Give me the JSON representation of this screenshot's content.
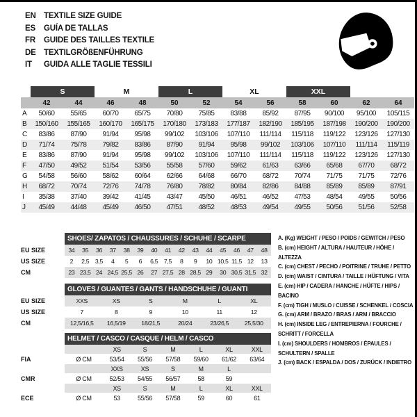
{
  "header": {
    "rows": [
      {
        "lang": "EN",
        "text": "TEXTILE SIZE GUIDE"
      },
      {
        "lang": "ES",
        "text": "GUÍA DE TALLAS"
      },
      {
        "lang": "FR",
        "text": "GUIDE DES TAILLES TEXTILE"
      },
      {
        "lang": "DE",
        "text": "TEXTILGRÖßENFÜHRUNG"
      },
      {
        "lang": "IT",
        "text": "GUIDA ALLE TAGLIE TESSILI"
      }
    ],
    "logo": "racing-helmet-icon"
  },
  "colors": {
    "dark_bar": "#3d3d3d",
    "sizes_row": "#bfbfbf",
    "stripe": "#ececec",
    "band": "#e0e0e0"
  },
  "main_table": {
    "size_groups": [
      {
        "label": "S",
        "dark": true
      },
      {
        "label": "M",
        "dark": false
      },
      {
        "label": "L",
        "dark": true
      },
      {
        "label": "XL",
        "dark": false
      },
      {
        "label": "XXL",
        "dark": true
      }
    ],
    "numeric_sizes": [
      "42",
      "44",
      "46",
      "48",
      "50",
      "52",
      "54",
      "56",
      "58",
      "60",
      "62",
      "64"
    ],
    "rows": [
      {
        "label": "A",
        "values": [
          "50/60",
          "55/65",
          "60/70",
          "65/75",
          "70/80",
          "75/85",
          "83/88",
          "85/92",
          "87/95",
          "90/100",
          "95/100",
          "105/115"
        ]
      },
      {
        "label": "B",
        "values": [
          "150/160",
          "155/165",
          "160/170",
          "165/175",
          "170/180",
          "173/183",
          "177/187",
          "182/190",
          "185/195",
          "187/198",
          "190/200",
          "190/200"
        ]
      },
      {
        "label": "C",
        "values": [
          "83/86",
          "87/90",
          "91/94",
          "95/98",
          "99/102",
          "103/106",
          "107/110",
          "111/114",
          "115/118",
          "119/122",
          "123/126",
          "127/130"
        ]
      },
      {
        "label": "D",
        "values": [
          "71/74",
          "75/78",
          "79/82",
          "83/86",
          "87/90",
          "91/94",
          "95/98",
          "99/102",
          "103/106",
          "107/110",
          "111/114",
          "115/119"
        ]
      },
      {
        "label": "E",
        "values": [
          "83/86",
          "87/90",
          "91/94",
          "95/98",
          "99/102",
          "103/106",
          "107/110",
          "111/114",
          "115/118",
          "119/122",
          "123/126",
          "127/130"
        ]
      },
      {
        "label": "F",
        "values": [
          "47/50",
          "49/52",
          "51/54",
          "53/56",
          "55/58",
          "57/60",
          "59/62",
          "61/63",
          "63/66",
          "65/68",
          "67/70",
          "68/72"
        ]
      },
      {
        "label": "G",
        "values": [
          "54/58",
          "56/60",
          "58/62",
          "60/64",
          "62/66",
          "64/68",
          "66/70",
          "68/72",
          "70/74",
          "71/75",
          "71/75",
          "72/76"
        ]
      },
      {
        "label": "H",
        "values": [
          "68/72",
          "70/74",
          "72/76",
          "74/78",
          "76/80",
          "78/82",
          "80/84",
          "82/86",
          "84/88",
          "85/89",
          "85/89",
          "87/91"
        ]
      },
      {
        "label": "I",
        "values": [
          "35/38",
          "37/40",
          "39/42",
          "41/45",
          "43/47",
          "45/50",
          "46/51",
          "46/52",
          "47/53",
          "48/54",
          "49/55",
          "50/56"
        ]
      },
      {
        "label": "J",
        "values": [
          "45/49",
          "44/48",
          "45/49",
          "46/50",
          "47/51",
          "48/52",
          "48/53",
          "49/54",
          "49/55",
          "50/56",
          "51/56",
          "52/58"
        ]
      }
    ]
  },
  "shoes_table": {
    "title": "SHOES/ ZAPATOS / CHAUSSURES / SCHUHE / SCARPE",
    "rows": [
      {
        "label": "EU SIZE",
        "shaded": true,
        "values": [
          "34",
          "35",
          "36",
          "37",
          "38",
          "39",
          "40",
          "41",
          "42",
          "43",
          "44",
          "45",
          "46",
          "47",
          "48"
        ]
      },
      {
        "label": "US SIZE",
        "shaded": false,
        "values": [
          "2",
          "2,5",
          "3,5",
          "4",
          "5",
          "6",
          "6,5",
          "7,5",
          "8",
          "9",
          "10",
          "10,5",
          "11,5",
          "12",
          "13"
        ]
      },
      {
        "label": "CM",
        "shaded": true,
        "values": [
          "23",
          "23,5",
          "24",
          "24,5",
          "25,5",
          "26",
          "27",
          "27,5",
          "28",
          "28,5",
          "29",
          "30",
          "30,5",
          "31,5",
          "32"
        ]
      }
    ]
  },
  "gloves_table": {
    "title": "GLOVES / GUANTES / GANTS / HANDSCHUHE / GUANTI",
    "rows": [
      {
        "label": "EU SIZE",
        "shaded": true,
        "values": [
          "XXS",
          "XS",
          "S",
          "M",
          "L",
          "XL"
        ]
      },
      {
        "label": "US SIZE",
        "shaded": false,
        "values": [
          "7",
          "8",
          "9",
          "10",
          "11",
          "12"
        ]
      },
      {
        "label": "CM",
        "shaded": true,
        "values": [
          "12,5/16,5",
          "16,5/19",
          "18/21,5",
          "20/24",
          "23/26,5",
          "25,5/30"
        ]
      }
    ]
  },
  "helmet_table": {
    "title": "HELMET / CASCO / CASQUE / HELM / CASCO",
    "groups": [
      {
        "label": "FIA",
        "unit": "Ø CM",
        "sizes": [
          "XS",
          "S",
          "M",
          "L",
          "XL",
          "XXL"
        ],
        "values": [
          "53/54",
          "55/56",
          "57/58",
          "59/60",
          "61/62",
          "63/64"
        ]
      },
      {
        "label": "CMR",
        "unit": "Ø CM",
        "sizes": [
          "XXS",
          "XS",
          "S",
          "M",
          "L",
          ""
        ],
        "values": [
          "52/53",
          "54/55",
          "56/57",
          "58",
          "59",
          ""
        ]
      },
      {
        "label": "ECE",
        "unit": "Ø CM",
        "sizes": [
          "XS",
          "S",
          "M",
          "L",
          "XL",
          "XXL"
        ],
        "values": [
          "53",
          "55/56",
          "57/58",
          "59",
          "60",
          "61"
        ]
      }
    ]
  },
  "legend": {
    "items": [
      "A. (Kg) WEIGHT / PESO / POIDS / GEWITCH / PESO",
      "B. (cm) HEIGHT / ALTURA / HAUTEUR / HÖHE / ALTEZZA",
      "C. (cm) CHEST / PECHO / POITRINE / TRUHE / PETTO",
      "D. (cm) WAIST / CINTURA / TAILLE / HÜFTUNG / VITA",
      "E. (cm) HIP / CADERA / HANCHE / HÜFTE / HIPS / BACINO",
      "F. (cm) TIGH / MUSLO / CUISSE / SCHENKEL / COSCIA",
      "G. (cm) ARM / BRAZO / BRAS / ARM / BRACCIO",
      "H. (cm) INSIDE LEG / ENTREPIERNA / FOURCHE / SCHRITT / FORCELLA",
      "I. (cm) SHOULDERS / HOMBROS / ÉPAULES / SCHULTERN / SPALLE",
      "J. (cm) BACK / ESPALDA / DOS / ZURÜCK / INDIETRO"
    ]
  }
}
